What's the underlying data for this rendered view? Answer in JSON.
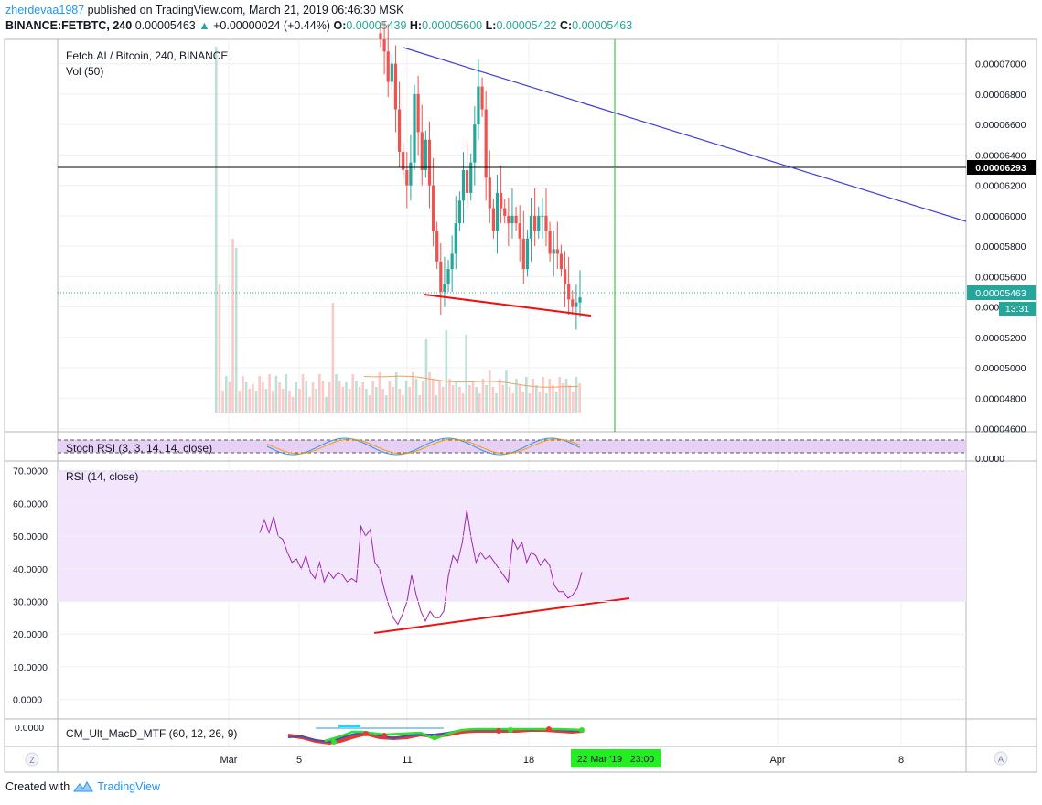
{
  "header": {
    "author": "zherdevaa1987",
    "published_text": "published on TradingView.com, March 21, 2019 06:46:30 MSK",
    "symbol_line": "BINANCE:FETBTC, 240",
    "last": "0.00005463",
    "change": "+0.00000024 (+0.44%)",
    "o_label": "O:",
    "o": "0.00005439",
    "h_label": "H:",
    "h": "0.00005600",
    "l_label": "L:",
    "l": "0.00005422",
    "c_label": "C:",
    "c": "0.00005463"
  },
  "footer": {
    "created_with": "Created with",
    "brand": "TradingView"
  },
  "colors": {
    "up": "#26a69a",
    "down": "#ef5350",
    "rsi": "#9c27b0",
    "rsi_band": "#f3e5fc",
    "trend_blue": "#3f3fd6",
    "trend_red": "#ee1111",
    "vline": "#22bb22",
    "ma": "#f0a060"
  },
  "chart_data": [
    {
      "type": "candlestick",
      "title": "Fetch.AI / Bitcoin, 240, BINANCE",
      "sub_legend": "Vol (50)",
      "x_tick_labels": [
        "Mar",
        "5",
        "11",
        "18",
        "Apr",
        "8"
      ],
      "x_cursor_label": "22 Mar '19   23:00",
      "y_tick_labels": [
        "0.00007000",
        "0.00006800",
        "0.00006600",
        "0.00006400",
        "0.00006200",
        "0.00006000",
        "0.00005800",
        "0.00005600",
        "0.00005463",
        "0.00005200",
        "0.00005000",
        "0.00004800",
        "0.00004600"
      ],
      "price_line_label": "0.00006293",
      "last_price_label": "0.00005463",
      "countdown_label": "13:31",
      "ylim": [
        4.58e-05,
        7.16e-05
      ],
      "grid": true,
      "candles_path": [
        [
          7.16e-05,
          7.08e-05,
          6.88e-05,
          7e-05,
          6.7e-05,
          6.42e-05,
          6.3e-05,
          6.2e-05,
          6.35e-05,
          6.8e-05,
          6.55e-05,
          6.3e-05,
          6.5e-05,
          6.2e-05,
          5.9e-05,
          5.7e-05,
          5.5e-05,
          5.55e-05,
          5.65e-05,
          5.75e-05,
          5.95e-05,
          6.1e-05,
          6.3e-05,
          6.15e-05,
          6.35e-05,
          6.6e-05,
          6.85e-05,
          6.7e-05,
          6.25e-05,
          6.05e-05,
          5.9e-05,
          6.15e-05,
          6.05e-05,
          6e-05,
          5.95e-05,
          6e-05,
          5.95e-05,
          5.85e-05,
          5.65e-05,
          5.85e-05,
          6e-05,
          5.9e-05,
          6e-05,
          6e-05,
          5.9e-05,
          5.75e-05,
          5.78e-05,
          5.75e-05,
          5.65e-05,
          5.55e-05,
          5.45e-05,
          5.4e-05,
          5.43e-05,
          5.463e-05
        ]
      ],
      "volume_ma": "Vol (50)"
    },
    {
      "type": "line",
      "title": "Stoch RSI (3, 3, 14, 14, close)",
      "y_tick_labels": [
        "0.0000"
      ]
    },
    {
      "type": "line",
      "title": "RSI (14, close)",
      "y_tick_labels": [
        "70.0000",
        "60.0000",
        "50.0000",
        "40.0000",
        "30.0000",
        "20.0000",
        "10.0000",
        "0.0000"
      ],
      "ylim": [
        -6,
        73
      ],
      "band": [
        30,
        70
      ],
      "series": [
        {
          "values": [
            51,
            55,
            51,
            56,
            50,
            49,
            45,
            42,
            43,
            40,
            44,
            39,
            37,
            42,
            36,
            39,
            37,
            39,
            38,
            36,
            37,
            36,
            53,
            50,
            52,
            42,
            40,
            34,
            29,
            25,
            23,
            26,
            30,
            38,
            32,
            27,
            24,
            27,
            25,
            25,
            27,
            38,
            44,
            42,
            48,
            58,
            49,
            42,
            45,
            43,
            44,
            42,
            40,
            38,
            36,
            49,
            46,
            48,
            42,
            45,
            44,
            41,
            43,
            41,
            35,
            33,
            33,
            31,
            32,
            34,
            39
          ]
        }
      ],
      "trendline": [
        [
          409,
          692
        ],
        [
          688,
          654
        ]
      ]
    },
    {
      "type": "line",
      "title": "CM_Ult_MacD_MTF (60, 12, 26, 9)",
      "y_tick_labels": [
        "0.0000"
      ]
    }
  ]
}
